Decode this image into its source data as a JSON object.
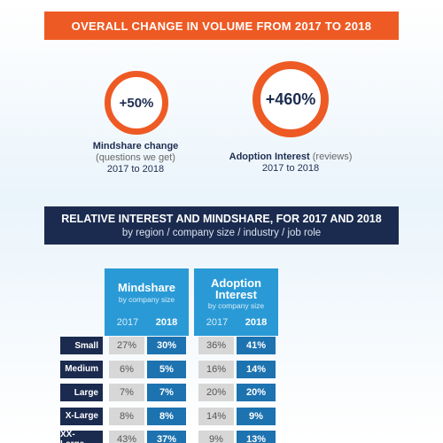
{
  "header": {
    "title": "OVERALL CHANGE IN VOLUME FROM 2017 TO 2018"
  },
  "metrics": [
    {
      "value": "+50%",
      "label": "Mindshare change",
      "note": "(questions we get)",
      "period": "2017 to 2018"
    },
    {
      "value": "+460%",
      "label": "Adoption Interest",
      "note": "(reviews)",
      "period": "2017 to 2018"
    }
  ],
  "section": {
    "title": "RELATIVE INTEREST AND MINDSHARE, FOR 2017 AND 2018",
    "subtitle": "by region / company size / industry / job role"
  },
  "table": {
    "columns": [
      {
        "title": "Mindshare",
        "subtitle": "by company size",
        "years": [
          "2017",
          "2018"
        ]
      },
      {
        "title": "Adoption Interest",
        "subtitle": "by company size",
        "years": [
          "2017",
          "2018"
        ]
      }
    ],
    "rows": [
      {
        "label": "Small",
        "cells": [
          "27%",
          "30%",
          "36%",
          "41%"
        ]
      },
      {
        "label": "Medium",
        "cells": [
          "6%",
          "5%",
          "16%",
          "14%"
        ]
      },
      {
        "label": "Large",
        "cells": [
          "7%",
          "7%",
          "20%",
          "20%"
        ]
      },
      {
        "label": "X-Large",
        "cells": [
          "8%",
          "8%",
          "14%",
          "9%"
        ]
      },
      {
        "label": "XX-Large",
        "cells": [
          "43%",
          "37%",
          "9%",
          "13%"
        ]
      }
    ]
  }
}
